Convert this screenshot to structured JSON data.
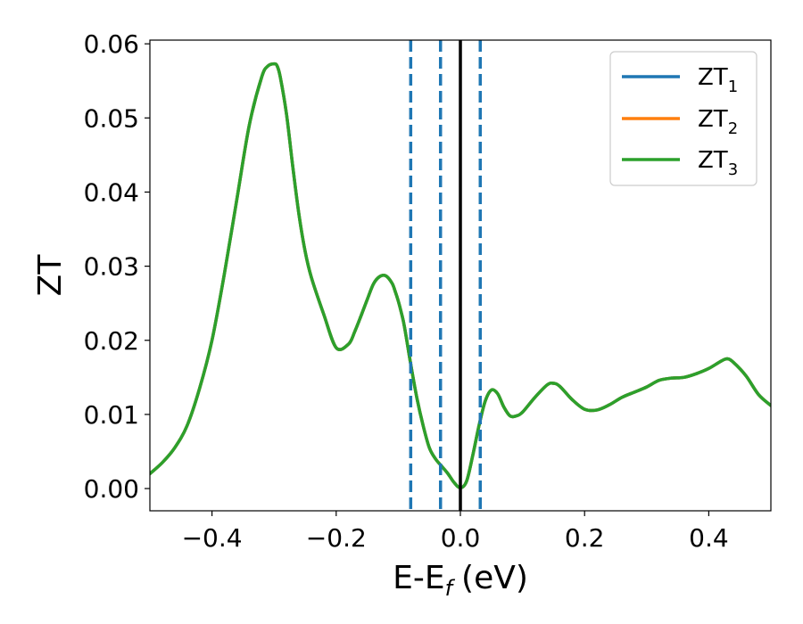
{
  "chart_data": {
    "type": "line",
    "xlabel": "E-E",
    "xlabel_sub": "f",
    "xlabel_unit": "(eV)",
    "ylabel": "ZT",
    "xlim": [
      -0.5,
      0.5
    ],
    "ylim": [
      -0.003,
      0.0605
    ],
    "xticks": [
      -0.4,
      -0.2,
      0.0,
      0.2,
      0.4
    ],
    "xtick_labels": [
      "−0.4",
      "−0.2",
      "0.0",
      "0.2",
      "0.4"
    ],
    "yticks": [
      0.0,
      0.01,
      0.02,
      0.03,
      0.04,
      0.05,
      0.06
    ],
    "ytick_labels": [
      "0.00",
      "0.01",
      "0.02",
      "0.03",
      "0.04",
      "0.05",
      "0.06"
    ],
    "grid": false,
    "legend_position": "top-right",
    "series_colors": [
      "#1f77b4",
      "#ff7f0e",
      "#2ca02c"
    ],
    "x": [
      -0.5,
      -0.48,
      -0.46,
      -0.44,
      -0.42,
      -0.4,
      -0.38,
      -0.36,
      -0.34,
      -0.32,
      -0.31,
      -0.3,
      -0.295,
      -0.29,
      -0.28,
      -0.27,
      -0.26,
      -0.25,
      -0.24,
      -0.22,
      -0.2,
      -0.18,
      -0.17,
      -0.16,
      -0.15,
      -0.14,
      -0.13,
      -0.12,
      -0.11,
      -0.105,
      -0.1,
      -0.095,
      -0.09,
      -0.08,
      -0.07,
      -0.06,
      -0.05,
      -0.04,
      -0.03,
      -0.02,
      -0.01,
      0.0,
      0.01,
      0.02,
      0.03,
      0.04,
      0.05,
      0.06,
      0.07,
      0.08,
      0.09,
      0.1,
      0.12,
      0.14,
      0.15,
      0.16,
      0.18,
      0.2,
      0.22,
      0.24,
      0.26,
      0.28,
      0.3,
      0.32,
      0.34,
      0.36,
      0.38,
      0.4,
      0.42,
      0.43,
      0.44,
      0.46,
      0.48,
      0.5
    ],
    "series": [
      {
        "name": "ZT",
        "name_sub": "1",
        "values": [
          0.002,
          0.0035,
          0.0055,
          0.0085,
          0.0135,
          0.02,
          0.029,
          0.039,
          0.049,
          0.0555,
          0.057,
          0.0573,
          0.057,
          0.0555,
          0.0505,
          0.0435,
          0.037,
          0.032,
          0.0285,
          0.0235,
          0.019,
          0.0195,
          0.0212,
          0.0233,
          0.0255,
          0.0276,
          0.0286,
          0.0287,
          0.0277,
          0.0266,
          0.0253,
          0.0237,
          0.0218,
          0.0168,
          0.0122,
          0.0085,
          0.0055,
          0.004,
          0.003,
          0.002,
          0.0008,
          0.0001,
          0.001,
          0.0045,
          0.0085,
          0.0118,
          0.0133,
          0.0128,
          0.011,
          0.0098,
          0.0098,
          0.0103,
          0.0123,
          0.014,
          0.0142,
          0.0138,
          0.012,
          0.0107,
          0.0106,
          0.0113,
          0.0123,
          0.013,
          0.0137,
          0.0146,
          0.0149,
          0.015,
          0.0155,
          0.0162,
          0.0172,
          0.0175,
          0.017,
          0.0152,
          0.0127,
          0.0112
        ]
      },
      {
        "name": "ZT",
        "name_sub": "2",
        "values": [
          0.002,
          0.0035,
          0.0055,
          0.0085,
          0.0135,
          0.02,
          0.029,
          0.039,
          0.049,
          0.0555,
          0.057,
          0.0573,
          0.057,
          0.0555,
          0.0505,
          0.0435,
          0.037,
          0.032,
          0.0285,
          0.0235,
          0.019,
          0.0195,
          0.0212,
          0.0233,
          0.0255,
          0.0276,
          0.0286,
          0.0287,
          0.0277,
          0.0266,
          0.0253,
          0.0237,
          0.0218,
          0.0168,
          0.0122,
          0.0085,
          0.0055,
          0.004,
          0.003,
          0.002,
          0.0008,
          0.0001,
          0.001,
          0.0045,
          0.0085,
          0.0118,
          0.0133,
          0.0128,
          0.011,
          0.0098,
          0.0098,
          0.0103,
          0.0123,
          0.014,
          0.0142,
          0.0138,
          0.012,
          0.0107,
          0.0106,
          0.0113,
          0.0123,
          0.013,
          0.0137,
          0.0146,
          0.0149,
          0.015,
          0.0155,
          0.0162,
          0.0172,
          0.0175,
          0.017,
          0.0152,
          0.0127,
          0.0112
        ]
      },
      {
        "name": "ZT",
        "name_sub": "3",
        "values": [
          0.002,
          0.0035,
          0.0055,
          0.0085,
          0.0135,
          0.02,
          0.029,
          0.039,
          0.049,
          0.0555,
          0.057,
          0.0573,
          0.057,
          0.0555,
          0.0505,
          0.0435,
          0.037,
          0.032,
          0.0285,
          0.0235,
          0.019,
          0.0195,
          0.0212,
          0.0233,
          0.0255,
          0.0276,
          0.0286,
          0.0287,
          0.0277,
          0.0266,
          0.0253,
          0.0237,
          0.0218,
          0.0168,
          0.0122,
          0.0085,
          0.0055,
          0.004,
          0.003,
          0.002,
          0.0008,
          0.0001,
          0.001,
          0.0045,
          0.0085,
          0.0118,
          0.0133,
          0.0128,
          0.011,
          0.0098,
          0.0098,
          0.0103,
          0.0123,
          0.014,
          0.0142,
          0.0138,
          0.012,
          0.0107,
          0.0106,
          0.0113,
          0.0123,
          0.013,
          0.0137,
          0.0146,
          0.0149,
          0.015,
          0.0155,
          0.0162,
          0.0172,
          0.0175,
          0.017,
          0.0152,
          0.0127,
          0.0112
        ]
      }
    ],
    "vertical_lines": [
      {
        "x": -0.08,
        "style": "dashed",
        "color": "#1f77b4"
      },
      {
        "x": -0.032,
        "style": "dashed",
        "color": "#1f77b4"
      },
      {
        "x": 0.0,
        "style": "solid",
        "color": "#000000"
      },
      {
        "x": 0.032,
        "style": "dashed",
        "color": "#1f77b4"
      }
    ]
  }
}
